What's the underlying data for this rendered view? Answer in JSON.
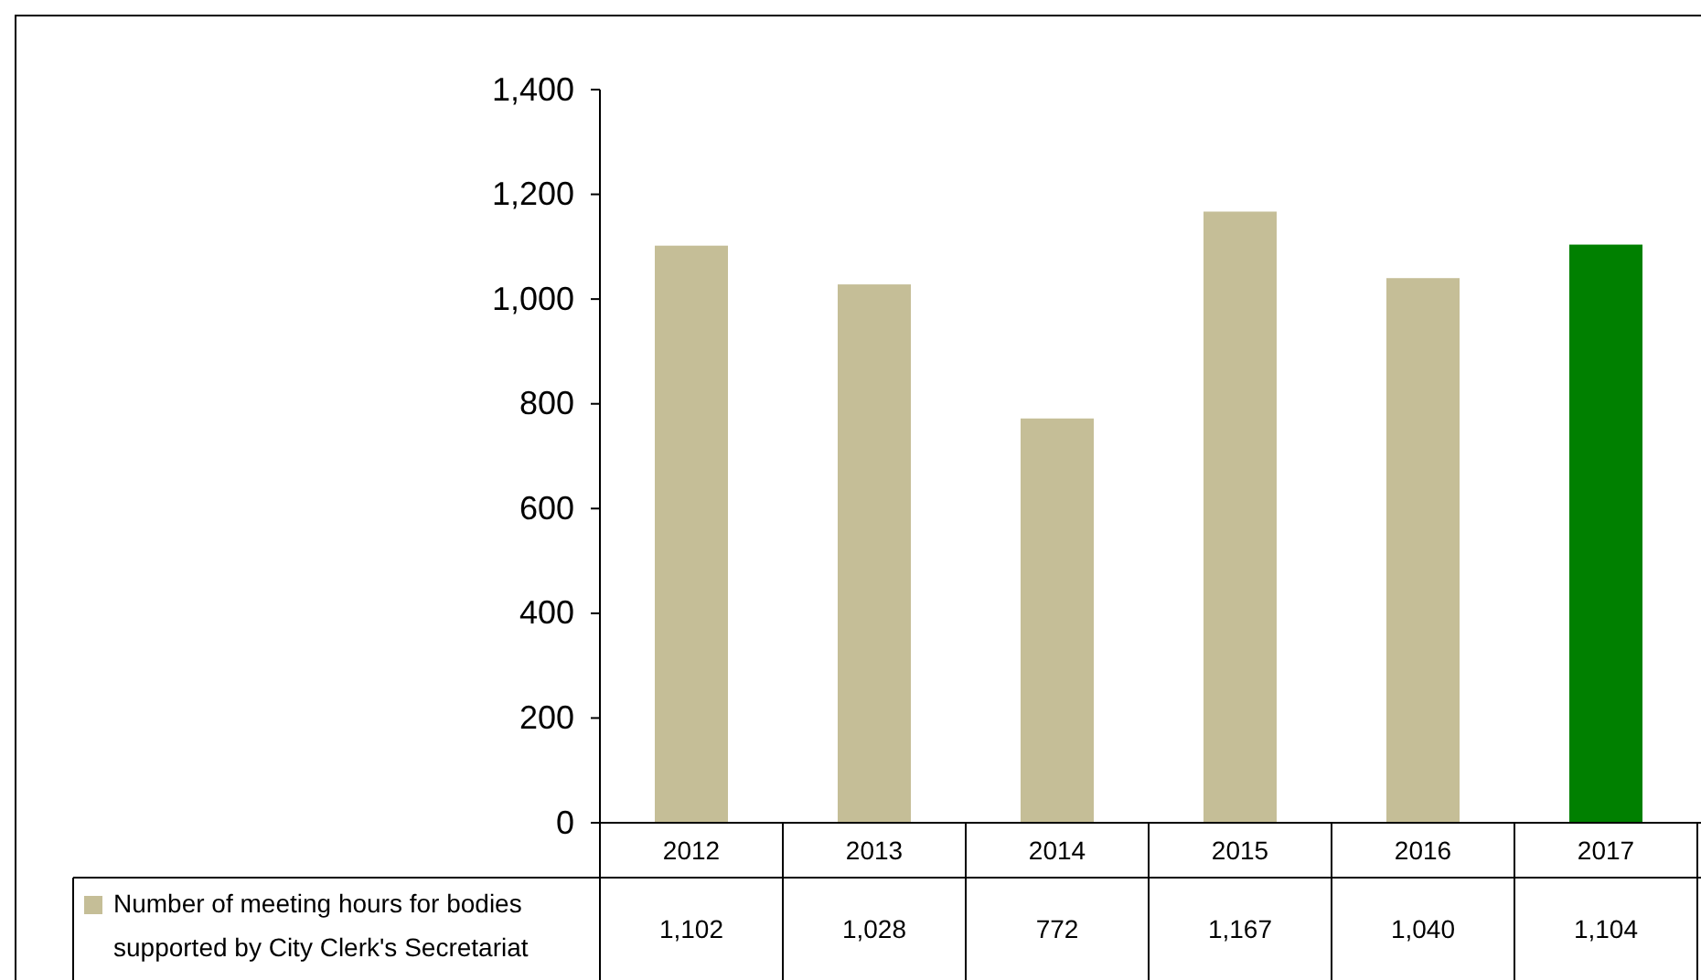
{
  "chart_data": {
    "type": "bar",
    "categories": [
      "2012",
      "2013",
      "2014",
      "2015",
      "2016",
      "2017"
    ],
    "series": [
      {
        "name": "Number of meeting hours for bodies supported by City Clerk's Secretariat",
        "color": "#c5be97",
        "colors": [
          "#c5be97",
          "#c5be97",
          "#c5be97",
          "#c5be97",
          "#c5be97",
          "#008000"
        ],
        "values": [
          1102,
          1028,
          772,
          1167,
          1040,
          1104
        ],
        "value_labels": [
          "1,102",
          "1,028",
          "772",
          "1,167",
          "1,040",
          "1,104"
        ]
      }
    ],
    "ylim": [
      0,
      1400
    ],
    "yticks": [
      0,
      {
        "value": 200,
        "label": "200"
      },
      {
        "value": 400,
        "label": "400"
      },
      {
        "value": 600,
        "label": "600"
      },
      {
        "value": 800,
        "label": "800"
      },
      {
        "value": 1000,
        "label": "1,000"
      },
      {
        "value": 1200,
        "label": "1,200"
      },
      {
        "value": 1400,
        "label": "1,400"
      }
    ],
    "grid": false,
    "legend": "bottom"
  }
}
